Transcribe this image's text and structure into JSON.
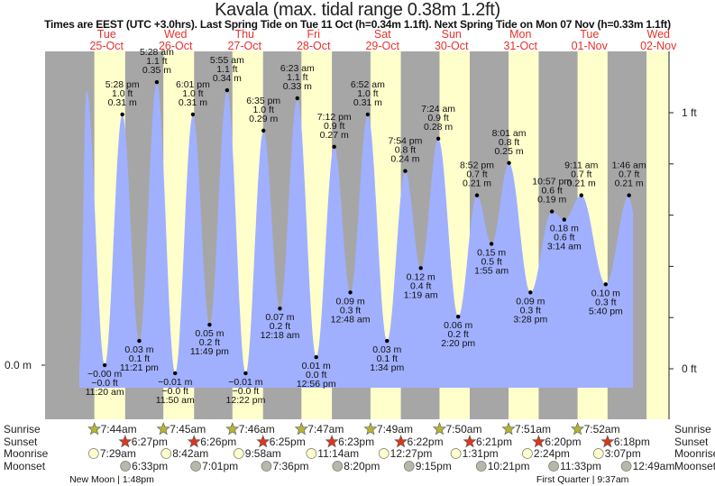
{
  "header": {
    "title": "Kavala (max. tidal range 0.38m 1.2ft)",
    "subtitle": "Times are EEST (UTC +3.0hrs). Last Spring Tide on Tue 11 Oct (h=0.34m 1.1ft). Next Spring Tide on Mon 07 Nov (h=0.33m 1.1ft)"
  },
  "colors": {
    "day": "#ffffcc",
    "night": "#a6a6a6",
    "water": "#a0b0ff",
    "day_label": "#e8322a",
    "sunrise": "#b5b534",
    "sunset": "#d9381e",
    "moonrise": "#ffffcc",
    "moonset": "#b8b8a8"
  },
  "chart_data": {
    "type": "area",
    "title": "Kavala (max. tidal range 0.38m 1.2ft)",
    "days": [
      {
        "dow": "Tue",
        "date": "25-Oct"
      },
      {
        "dow": "Wed",
        "date": "26-Oct"
      },
      {
        "dow": "Thu",
        "date": "27-Oct"
      },
      {
        "dow": "Fri",
        "date": "28-Oct"
      },
      {
        "dow": "Sat",
        "date": "29-Oct"
      },
      {
        "dow": "Sun",
        "date": "30-Oct"
      },
      {
        "dow": "Mon",
        "date": "31-Oct"
      },
      {
        "dow": "Tue",
        "date": "01-Nov"
      },
      {
        "dow": "Wed",
        "date": "02-Nov"
      }
    ],
    "left_axis": {
      "label": "0.0 m"
    },
    "right_axis": {
      "ticks_ft": [
        0,
        0.2,
        0.4,
        0.6,
        0.8,
        1.0
      ],
      "labels": [
        {
          "ft": 0,
          "text": "0 ft"
        },
        {
          "ft": 1,
          "text": "1 ft"
        }
      ]
    },
    "extremes": [
      {
        "day": 0,
        "time": "",
        "hours": 5.0,
        "m": 0.34,
        "type": "high",
        "m_text": "",
        "ft_text": ""
      },
      {
        "day": 0,
        "time": "11:20 am",
        "hours": 11.33,
        "m": 0.0,
        "type": "low",
        "m_text": "−0.00 m",
        "ft_text": "−0.0 ft"
      },
      {
        "day": 0,
        "time": "5:28 pm",
        "hours": 17.47,
        "m": 0.31,
        "type": "high",
        "m_text": "0.31 m",
        "ft_text": "1.0 ft"
      },
      {
        "day": 0,
        "time": "11:21 pm",
        "hours": 23.35,
        "m": 0.03,
        "type": "low",
        "m_text": "0.03 m",
        "ft_text": "0.1 ft"
      },
      {
        "day": 1,
        "time": "5:28 am",
        "hours": 5.47,
        "m": 0.35,
        "type": "high",
        "m_text": "0.35 m",
        "ft_text": "1.1 ft"
      },
      {
        "day": 1,
        "time": "11:50 am",
        "hours": 11.83,
        "m": -0.01,
        "type": "low",
        "m_text": "−0.01 m",
        "ft_text": "−0.0 ft"
      },
      {
        "day": 1,
        "time": "6:01 pm",
        "hours": 18.02,
        "m": 0.31,
        "type": "high",
        "m_text": "0.31 m",
        "ft_text": "1.0 ft"
      },
      {
        "day": 1,
        "time": "11:49 pm",
        "hours": 23.82,
        "m": 0.05,
        "type": "low",
        "m_text": "0.05 m",
        "ft_text": "0.2 ft"
      },
      {
        "day": 2,
        "time": "5:55 am",
        "hours": 5.92,
        "m": 0.34,
        "type": "high",
        "m_text": "0.34 m",
        "ft_text": "1.1 ft"
      },
      {
        "day": 2,
        "time": "12:22 pm",
        "hours": 12.37,
        "m": -0.01,
        "type": "low",
        "m_text": "−0.01 m",
        "ft_text": "−0.0 ft"
      },
      {
        "day": 2,
        "time": "6:35 pm",
        "hours": 18.58,
        "m": 0.29,
        "type": "high",
        "m_text": "0.29 m",
        "ft_text": "1.0 ft"
      },
      {
        "day": 3,
        "time": "12:18 am",
        "hours": 0.3,
        "m": 0.07,
        "type": "low",
        "m_text": "0.07 m",
        "ft_text": "0.2 ft"
      },
      {
        "day": 3,
        "time": "6:23 am",
        "hours": 6.38,
        "m": 0.33,
        "type": "high",
        "m_text": "0.33 m",
        "ft_text": "1.1 ft"
      },
      {
        "day": 3,
        "time": "12:56 pm",
        "hours": 12.93,
        "m": 0.01,
        "type": "low",
        "m_text": "0.01 m",
        "ft_text": "0.0 ft"
      },
      {
        "day": 3,
        "time": "7:12 pm",
        "hours": 19.2,
        "m": 0.27,
        "type": "high",
        "m_text": "0.27 m",
        "ft_text": "0.9 ft"
      },
      {
        "day": 4,
        "time": "12:48 am",
        "hours": 0.8,
        "m": 0.09,
        "type": "low",
        "m_text": "0.09 m",
        "ft_text": "0.3 ft"
      },
      {
        "day": 4,
        "time": "6:52 am",
        "hours": 6.87,
        "m": 0.31,
        "type": "high",
        "m_text": "0.31 m",
        "ft_text": "1.0 ft"
      },
      {
        "day": 4,
        "time": "1:34 pm",
        "hours": 13.57,
        "m": 0.03,
        "type": "low",
        "m_text": "0.03 m",
        "ft_text": "0.1 ft"
      },
      {
        "day": 4,
        "time": "7:54 pm",
        "hours": 19.9,
        "m": 0.24,
        "type": "high",
        "m_text": "0.24 m",
        "ft_text": "0.8 ft"
      },
      {
        "day": 5,
        "time": "1:19 am",
        "hours": 1.32,
        "m": 0.12,
        "type": "low",
        "m_text": "0.12 m",
        "ft_text": "0.4 ft"
      },
      {
        "day": 5,
        "time": "7:24 am",
        "hours": 7.4,
        "m": 0.28,
        "type": "high",
        "m_text": "0.28 m",
        "ft_text": "0.9 ft"
      },
      {
        "day": 5,
        "time": "2:20 pm",
        "hours": 14.33,
        "m": 0.06,
        "type": "low",
        "m_text": "0.06 m",
        "ft_text": "0.2 ft"
      },
      {
        "day": 5,
        "time": "8:52 pm",
        "hours": 20.87,
        "m": 0.21,
        "type": "high",
        "m_text": "0.21 m",
        "ft_text": "0.7 ft"
      },
      {
        "day": 6,
        "time": "1:55 am",
        "hours": 1.92,
        "m": 0.15,
        "type": "low",
        "m_text": "0.15 m",
        "ft_text": "0.5 ft"
      },
      {
        "day": 6,
        "time": "8:01 am",
        "hours": 8.02,
        "m": 0.25,
        "type": "high",
        "m_text": "0.25 m",
        "ft_text": "0.8 ft"
      },
      {
        "day": 6,
        "time": "3:28 pm",
        "hours": 15.47,
        "m": 0.09,
        "type": "low",
        "m_text": "0.09 m",
        "ft_text": "0.3 ft"
      },
      {
        "day": 6,
        "time": "10:57 pm",
        "hours": 22.95,
        "m": 0.19,
        "type": "high",
        "m_text": "0.19 m",
        "ft_text": "0.6 ft"
      },
      {
        "day": 7,
        "time": "3:14 am",
        "hours": 3.23,
        "m": 0.18,
        "type": "low",
        "m_text": "0.18 m",
        "ft_text": "0.6 ft"
      },
      {
        "day": 7,
        "time": "9:11 am",
        "hours": 9.18,
        "m": 0.21,
        "type": "high",
        "m_text": "0.21 m",
        "ft_text": "0.7 ft"
      },
      {
        "day": 7,
        "time": "5:40 pm",
        "hours": 17.67,
        "m": 0.1,
        "type": "low",
        "m_text": "0.10 m",
        "ft_text": "0.3 ft"
      },
      {
        "day": 8,
        "time": "1:46 am",
        "hours": 1.77,
        "m": 0.21,
        "type": "high",
        "m_text": "0.21 m",
        "ft_text": "0.7 ft"
      }
    ]
  },
  "astro": {
    "row_labels": [
      "Sunrise",
      "Sunset",
      "Moonrise",
      "Moonset"
    ],
    "sunrise": [
      {
        "day": 0,
        "t": "7:44am",
        "h": 7.73
      },
      {
        "day": 1,
        "t": "7:45am",
        "h": 7.75
      },
      {
        "day": 2,
        "t": "7:46am",
        "h": 7.77
      },
      {
        "day": 3,
        "t": "7:47am",
        "h": 7.78
      },
      {
        "day": 4,
        "t": "7:49am",
        "h": 7.82
      },
      {
        "day": 5,
        "t": "7:50am",
        "h": 7.83
      },
      {
        "day": 6,
        "t": "7:51am",
        "h": 7.85
      },
      {
        "day": 7,
        "t": "7:52am",
        "h": 7.87
      }
    ],
    "sunset": [
      {
        "day": 0,
        "t": "6:27pm",
        "h": 18.45
      },
      {
        "day": 1,
        "t": "6:26pm",
        "h": 18.43
      },
      {
        "day": 2,
        "t": "6:25pm",
        "h": 18.42
      },
      {
        "day": 3,
        "t": "6:23pm",
        "h": 18.38
      },
      {
        "day": 4,
        "t": "6:22pm",
        "h": 18.37
      },
      {
        "day": 5,
        "t": "6:21pm",
        "h": 18.35
      },
      {
        "day": 6,
        "t": "6:20pm",
        "h": 18.33
      },
      {
        "day": 7,
        "t": "6:18pm",
        "h": 18.3
      }
    ],
    "moonrise": [
      {
        "day": 0,
        "t": "7:29am",
        "h": 7.48
      },
      {
        "day": 1,
        "t": "8:42am",
        "h": 8.7
      },
      {
        "day": 2,
        "t": "9:58am",
        "h": 9.97
      },
      {
        "day": 3,
        "t": "11:14am",
        "h": 11.23
      },
      {
        "day": 4,
        "t": "12:27pm",
        "h": 12.45
      },
      {
        "day": 5,
        "t": "1:31pm",
        "h": 13.52
      },
      {
        "day": 6,
        "t": "2:24pm",
        "h": 14.4
      },
      {
        "day": 7,
        "t": "3:07pm",
        "h": 15.12
      }
    ],
    "moonset": [
      {
        "day": 0,
        "t": "6:33pm",
        "h": 18.55
      },
      {
        "day": 1,
        "t": "7:01pm",
        "h": 19.02
      },
      {
        "day": 2,
        "t": "7:36pm",
        "h": 19.6
      },
      {
        "day": 3,
        "t": "8:20pm",
        "h": 20.33
      },
      {
        "day": 4,
        "t": "9:15pm",
        "h": 21.25
      },
      {
        "day": 5,
        "t": "10:21pm",
        "h": 22.35
      },
      {
        "day": 6,
        "t": "11:33pm",
        "h": 23.55
      },
      {
        "day": 8,
        "t": "12:49am",
        "h": 0.82
      }
    ],
    "phases": [
      {
        "day": 0,
        "h": 13.8,
        "text": "New Moon | 1:48pm"
      },
      {
        "day": 7,
        "h": 9.62,
        "text": "First Quarter | 9:37am"
      }
    ]
  }
}
